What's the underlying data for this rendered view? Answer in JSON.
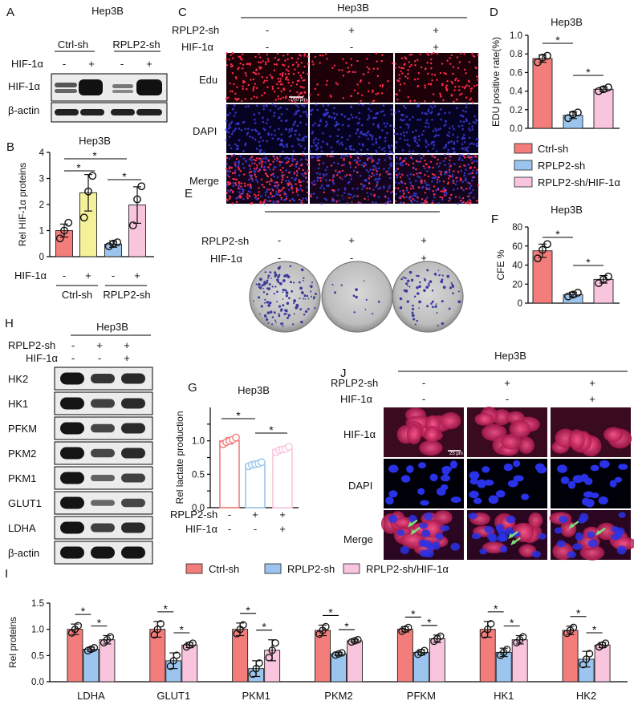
{
  "colors": {
    "ctrl": "#f27d7b",
    "rplp2": "#9bc5ee",
    "hif": "#f9c5de",
    "yellow_hif": "#f5f19a",
    "blot_bg": "#ececec",
    "band": "#1a1a1a",
    "edu_bg": "#1e0008",
    "dapi_bg": "#060322",
    "hifif_bg": "#3a0a1e"
  },
  "panels": {
    "A": "A",
    "B": "B",
    "C": "C",
    "D": "D",
    "E": "E",
    "F": "F",
    "G": "G",
    "H": "H",
    "I": "I",
    "J": "J"
  },
  "common": {
    "cell_line": "Hep3B",
    "hif": "HIF-1α",
    "rplp2sh": "RPLP2-sh",
    "ctrlsh": "Ctrl-sh",
    "minus": "-",
    "plus": "+",
    "star": "*"
  },
  "panelA": {
    "groups": [
      "Ctrl-sh",
      "RPLP2-sh"
    ],
    "hif_signs": [
      "-",
      "+",
      "-",
      "+"
    ],
    "rows": [
      "HIF-1α",
      "β-actin"
    ]
  },
  "panelC": {
    "rplp2_signs": [
      "-",
      "+",
      "+"
    ],
    "hif_signs": [
      "-",
      "-",
      "+"
    ],
    "rows": [
      "Edu",
      "DAPI",
      "Merge"
    ],
    "scale": "100 μm"
  },
  "panelE": {
    "rplp2_signs": [
      "-",
      "+",
      "+"
    ],
    "hif_signs": [
      "-",
      "-",
      "+"
    ]
  },
  "panelH": {
    "rplp2_signs": [
      "-",
      "+",
      "+"
    ],
    "hif_signs": [
      "-",
      "-",
      "+"
    ],
    "rows": [
      "HK2",
      "HK1",
      "PFKM",
      "PKM2",
      "PKM1",
      "GLUT1",
      "LDHA",
      "β-actin"
    ]
  },
  "panelJ": {
    "rplp2_signs": [
      "-",
      "+",
      "+"
    ],
    "hif_signs": [
      "-",
      "-",
      "+"
    ],
    "rows": [
      "HIF-1α",
      "DAPI",
      "Merge"
    ],
    "scale": "25 μm"
  },
  "legend": {
    "items": [
      "Ctrl-sh",
      "RPLP2-sh",
      "RPLP2-sh/HIF-1α"
    ]
  },
  "chart_data": [
    {
      "id": "B",
      "type": "bar",
      "title": "Hep3B",
      "ylabel": "Rel HIF-1α proteins",
      "ylim": [
        0,
        4
      ],
      "yticks": [
        0,
        1,
        2,
        3,
        4
      ],
      "categories": [
        "Ctrl-sh -",
        "Ctrl-sh +",
        "RPLP2-sh -",
        "RPLP2-sh +"
      ],
      "values": [
        1.0,
        2.45,
        0.48,
        1.98
      ],
      "errors": [
        0.25,
        0.7,
        0.12,
        0.7
      ],
      "points": [
        [
          0.7,
          1.0,
          1.3
        ],
        [
          1.5,
          2.5,
          3.1
        ],
        [
          0.4,
          0.5,
          0.55
        ],
        [
          1.2,
          2.2,
          2.7
        ]
      ],
      "x_rows": {
        "label": "HIF-1α",
        "signs": [
          "-",
          "+",
          "-",
          "+"
        ],
        "groups": [
          "Ctrl-sh",
          "RPLP2-sh"
        ]
      }
    },
    {
      "id": "D",
      "type": "bar",
      "title": "Hep3B",
      "ylabel": "EDU positive rate(%)",
      "ylim": [
        0,
        1.0
      ],
      "yticks": [
        0.0,
        0.2,
        0.4,
        0.6,
        0.8,
        1.0
      ],
      "tick_labels": [
        "0.0",
        "0.2",
        "0.4",
        "0.6",
        "0.8",
        "1.0"
      ],
      "categories": [
        "Ctrl-sh",
        "RPLP2-sh",
        "RPLP2-sh/HIF-1α"
      ],
      "values": [
        0.75,
        0.14,
        0.42
      ],
      "errors": [
        0.04,
        0.035,
        0.025
      ],
      "points": [
        [
          0.71,
          0.76,
          0.78
        ],
        [
          0.11,
          0.15,
          0.17
        ],
        [
          0.4,
          0.42,
          0.44
        ]
      ]
    },
    {
      "id": "F",
      "type": "bar",
      "title": "Hep3B",
      "ylabel": "CFE %",
      "ylim": [
        0,
        80
      ],
      "yticks": [
        0,
        20,
        40,
        60,
        80
      ],
      "categories": [
        "Ctrl-sh",
        "RPLP2-sh",
        "RPLP2-sh/HIF-1α"
      ],
      "values": [
        55,
        9,
        25
      ],
      "errors": [
        7,
        2.5,
        4
      ],
      "points": [
        [
          47,
          56,
          62
        ],
        [
          7,
          9,
          11
        ],
        [
          21,
          25,
          28
        ]
      ]
    },
    {
      "id": "G",
      "type": "bar",
      "title": "Hep3B",
      "ylabel": "Rel lactate production",
      "ylim": [
        0,
        1.5
      ],
      "yticks": [
        0.0,
        0.25,
        0.5,
        0.75,
        1.0,
        1.25
      ],
      "tick_labels": [
        "0.0",
        "",
        "0.5",
        "",
        "1.0",
        ""
      ],
      "categories": [
        "Ctrl-sh",
        "RPLP2-sh",
        "RPLP2-sh/HIF-1α"
      ],
      "values": [
        1.0,
        0.65,
        0.87
      ],
      "errors": [
        0.05,
        0.03,
        0.04
      ],
      "points": [
        [
          0.95,
          0.98,
          1.0,
          1.02,
          1.05
        ],
        [
          0.62,
          0.64,
          0.65,
          0.66,
          0.68
        ],
        [
          0.83,
          0.86,
          0.87,
          0.88,
          0.91
        ]
      ],
      "x_rows": {
        "rplp2_signs": [
          "-",
          "+",
          "+"
        ],
        "hif_signs": [
          "-",
          "-",
          "+"
        ]
      }
    },
    {
      "id": "I",
      "type": "bar",
      "ylabel": "Rel proteins",
      "ylim": [
        0,
        1.5
      ],
      "yticks": [
        0.0,
        0.5,
        1.0,
        1.5
      ],
      "tick_labels": [
        "0.0",
        "0.5",
        "1.0",
        "1.5"
      ],
      "categories": [
        "LDHA",
        "GLUT1",
        "PKM1",
        "PKM2",
        "PFKM",
        "HK1",
        "HK2"
      ],
      "series": [
        {
          "name": "Ctrl-sh",
          "values": [
            1.0,
            1.0,
            1.0,
            0.98,
            1.0,
            1.0,
            0.98
          ],
          "errors": [
            0.1,
            0.15,
            0.12,
            0.1,
            0.05,
            0.15,
            0.08
          ]
        },
        {
          "name": "RPLP2-sh",
          "values": [
            0.62,
            0.4,
            0.25,
            0.53,
            0.56,
            0.56,
            0.43
          ],
          "errors": [
            0.04,
            0.15,
            0.15,
            0.03,
            0.05,
            0.08,
            0.15
          ]
        },
        {
          "name": "RPLP2-sh/HIF-1α",
          "values": [
            0.8,
            0.7,
            0.6,
            0.78,
            0.82,
            0.8,
            0.7
          ],
          "errors": [
            0.08,
            0.05,
            0.2,
            0.03,
            0.07,
            0.08,
            0.05
          ]
        }
      ]
    }
  ]
}
